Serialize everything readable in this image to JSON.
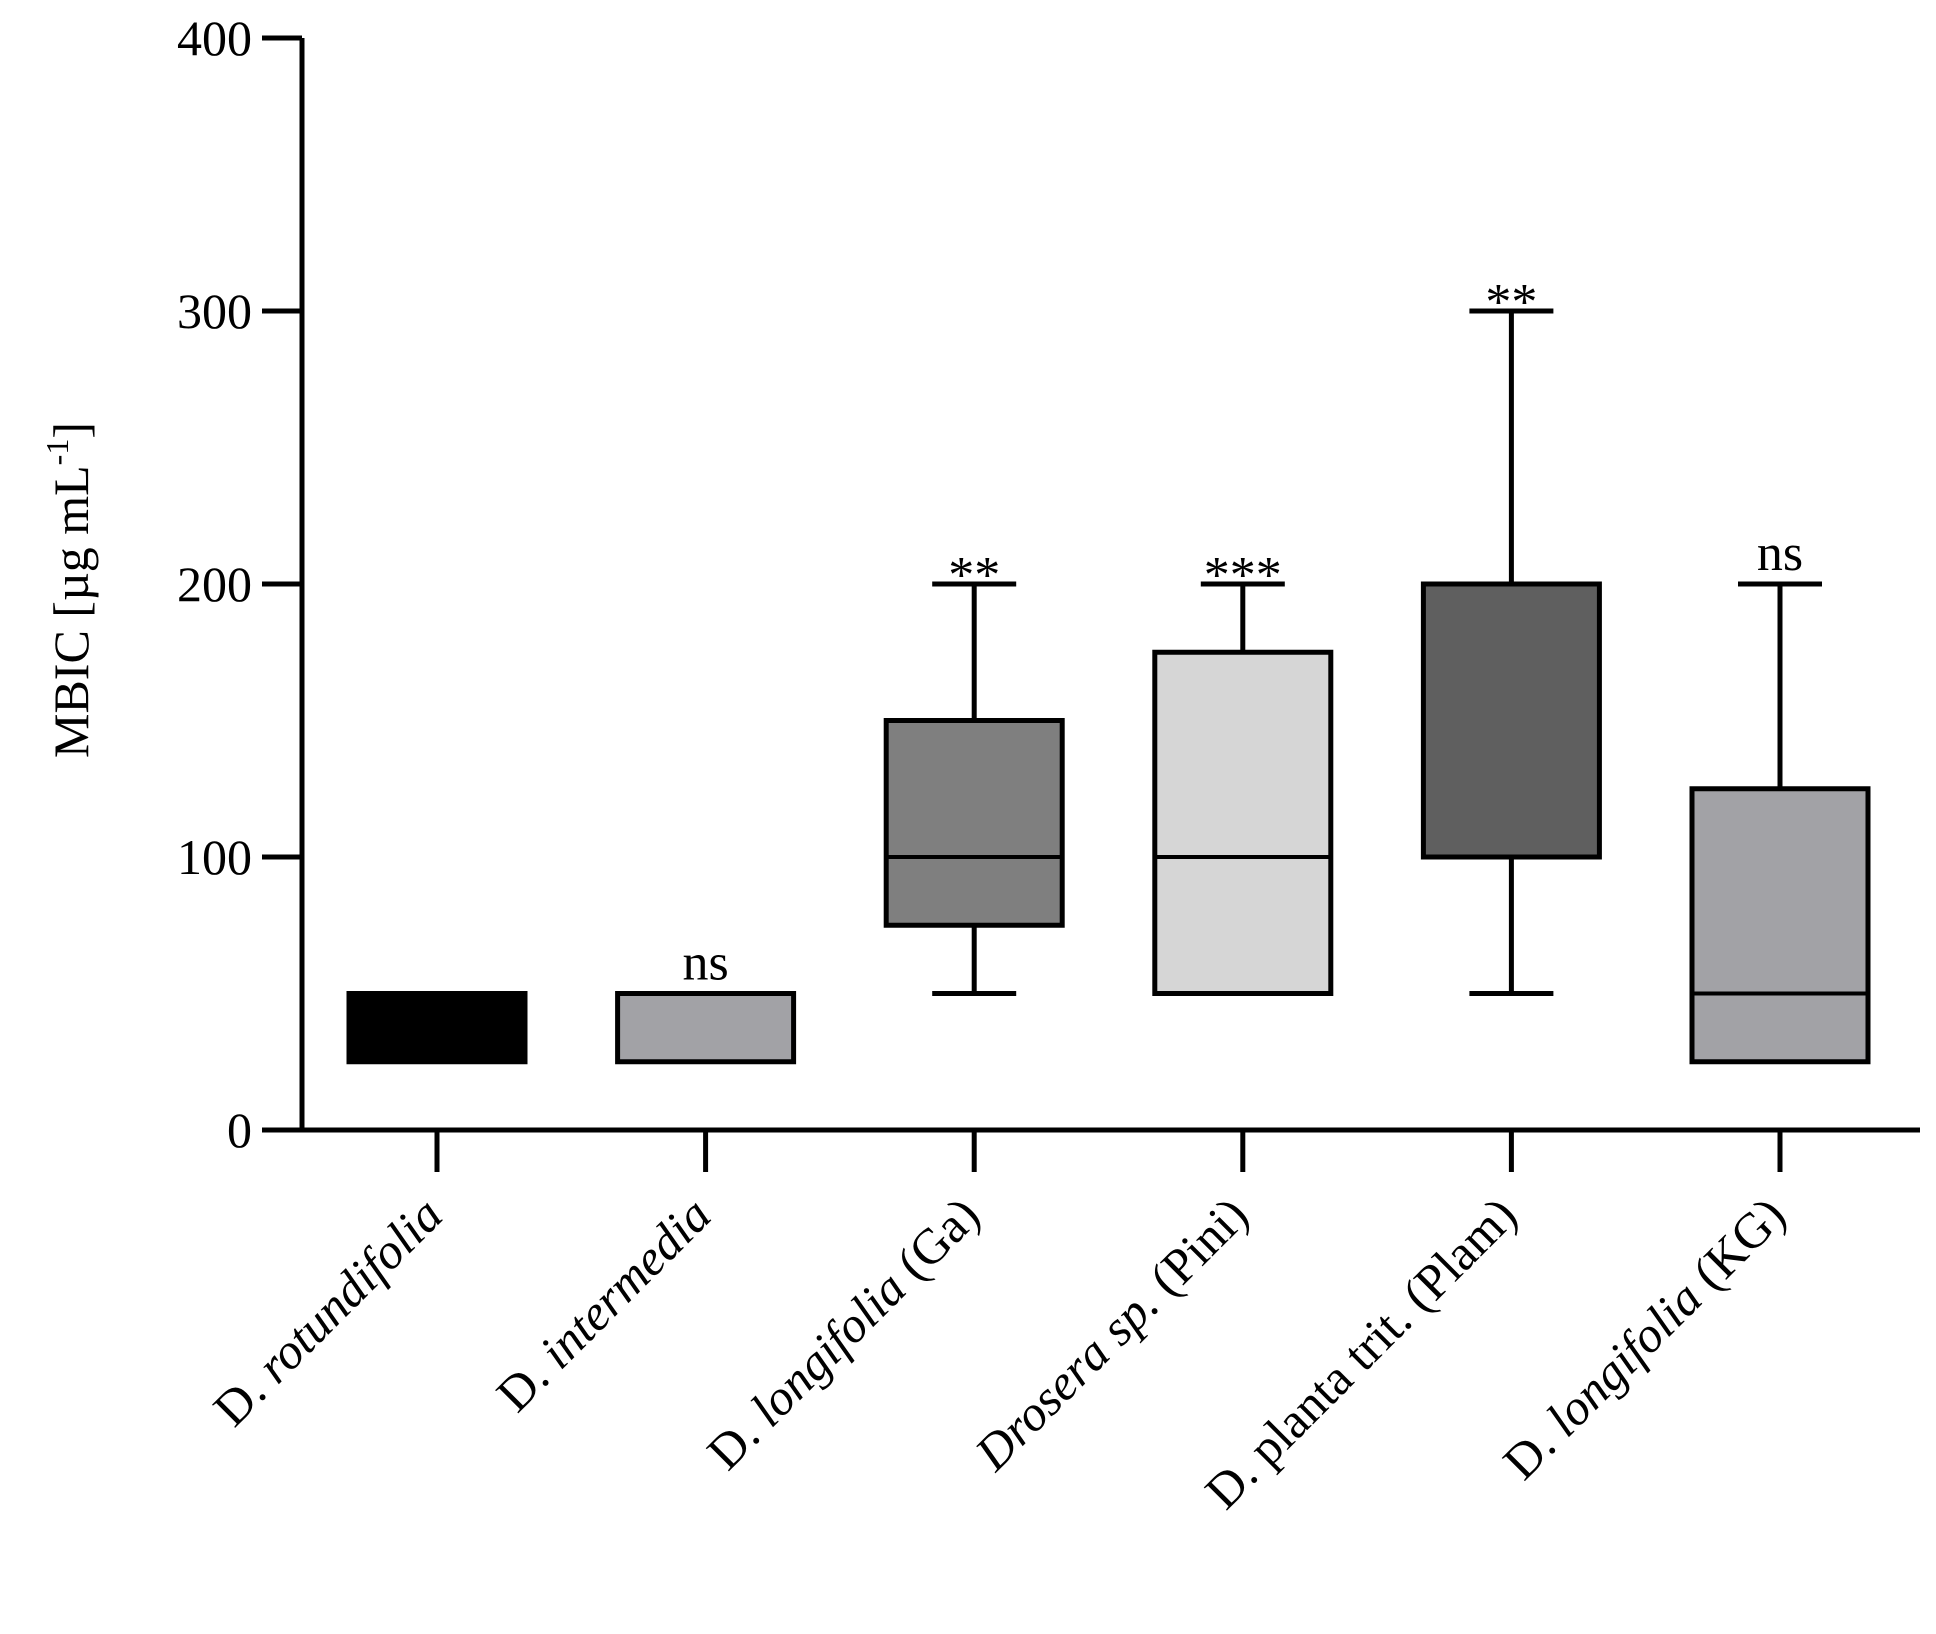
{
  "chart_data": {
    "type": "box",
    "title": "",
    "ylabel": "MBIC [µg mL",
    "ylabel_superscript": "-1",
    "ylabel_close": "]",
    "xlabel": "",
    "ylim": [
      0,
      400
    ],
    "yticks": [
      0,
      100,
      200,
      300,
      400
    ],
    "categories": [
      {
        "name": "D. rotundifolia",
        "parts": [
          {
            "text": "D. ",
            "italic": false
          },
          {
            "text": "rotundifolia",
            "italic": true
          }
        ]
      },
      {
        "name": "D. intermedia",
        "parts": [
          {
            "text": "D. ",
            "italic": false
          },
          {
            "text": "intermedia",
            "italic": true
          }
        ]
      },
      {
        "name": "D. longifolia (Ga)",
        "parts": [
          {
            "text": "D. ",
            "italic": false
          },
          {
            "text": "longifolia",
            "italic": true
          },
          {
            "text": " (Ga)",
            "italic": false
          }
        ]
      },
      {
        "name": "Drosera sp. (Pini)",
        "parts": [
          {
            "text": "Drosera sp.",
            "italic": true
          },
          {
            "text": " (Pini)",
            "italic": false
          }
        ]
      },
      {
        "name": "D. planta trit. (Plam)",
        "parts": [
          {
            "text": "D. planta trit. (Plam)",
            "italic": false
          }
        ]
      },
      {
        "name": "D. longifolia (KG)",
        "parts": [
          {
            "text": "D. ",
            "italic": false
          },
          {
            "text": "longifolia",
            "italic": true
          },
          {
            "text": " (KG)",
            "italic": false
          }
        ]
      }
    ],
    "boxes": [
      {
        "min": 25,
        "q1": 25,
        "median": 50,
        "q3": 50,
        "max": 50,
        "color": "#000000",
        "significance": ""
      },
      {
        "min": 25,
        "q1": 25,
        "median": 50,
        "q3": 50,
        "max": 50,
        "color": "#a2a2a6",
        "significance": "ns"
      },
      {
        "min": 50,
        "q1": 75,
        "median": 100,
        "q3": 150,
        "max": 200,
        "color": "#7f7f7f",
        "significance": "**"
      },
      {
        "min": 50,
        "q1": 50,
        "median": 100,
        "q3": 175,
        "max": 200,
        "color": "#d6d6d6",
        "significance": "***"
      },
      {
        "min": 50,
        "q1": 100,
        "median": 100,
        "q3": 200,
        "max": 300,
        "color": "#5f5f5f",
        "significance": "**"
      },
      {
        "min": 25,
        "q1": 25,
        "median": 50,
        "q3": 125,
        "max": 200,
        "color": "#a2a2a6",
        "significance": "ns"
      }
    ]
  }
}
